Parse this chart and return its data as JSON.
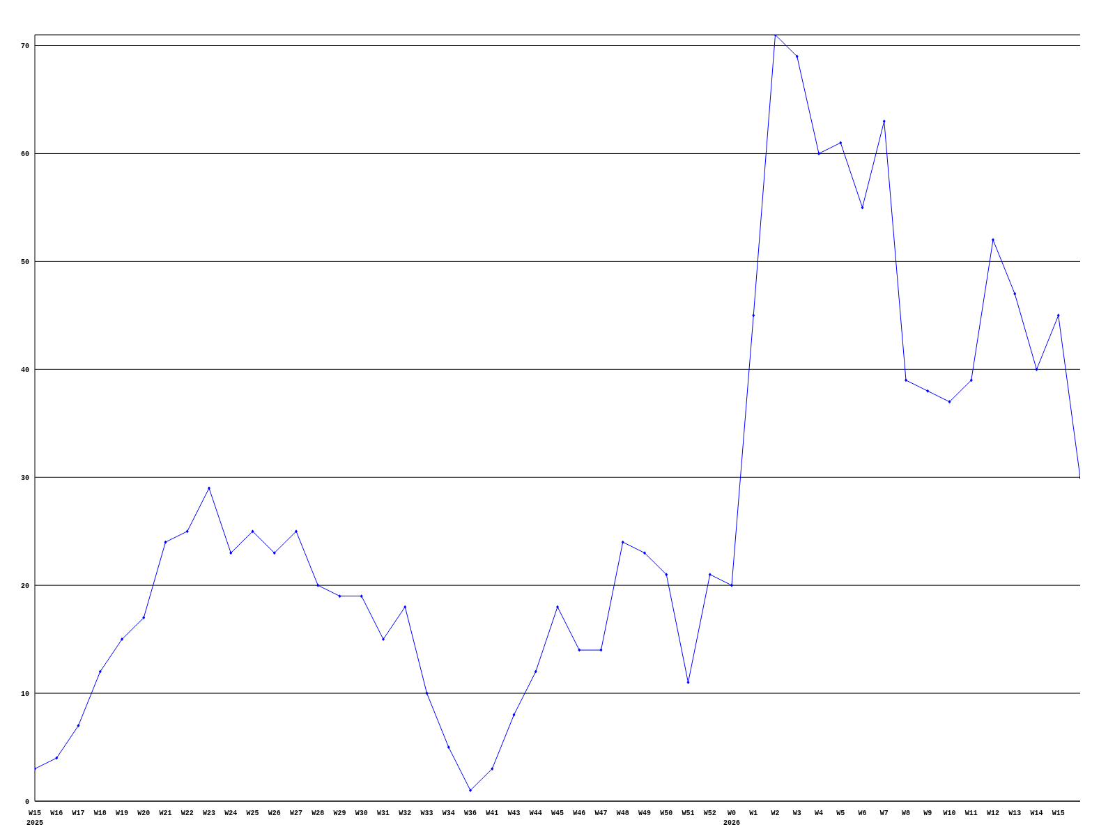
{
  "chart_data": {
    "type": "line",
    "categories": [
      "W15\n2025",
      "W16",
      "W17",
      "W18",
      "W19",
      "W20",
      "W21",
      "W22",
      "W23",
      "W24",
      "W25",
      "W26",
      "W27",
      "W28",
      "W29",
      "W30",
      "W31",
      "W32",
      "W33",
      "W34",
      "W36",
      "W41",
      "W43",
      "W44",
      "W45",
      "W46",
      "W47",
      "W48",
      "W49",
      "W50",
      "W51",
      "W52",
      "W0\n2026",
      "W1",
      "W2",
      "W3",
      "W4",
      "W5",
      "W6",
      "W7",
      "W8",
      "W9",
      "W10",
      "W11",
      "W12",
      "W13",
      "W14",
      "W15",
      null
    ],
    "series": [
      {
        "color": "#0000ff",
        "values": [
          3,
          4,
          7,
          12,
          15,
          17,
          24,
          25,
          29,
          23,
          25,
          23,
          25,
          20,
          19,
          19,
          15,
          18,
          10,
          5,
          1,
          3,
          8,
          12,
          18,
          14,
          14,
          24,
          23,
          21,
          11,
          21,
          20,
          45,
          71,
          69,
          60,
          61,
          55,
          63,
          39,
          38,
          37,
          39,
          52,
          47,
          40,
          45,
          30
        ]
      }
    ],
    "ylim": [
      0,
      71
    ],
    "yticks": [
      0,
      10,
      20,
      30,
      40,
      50,
      60,
      70
    ],
    "grid": "y",
    "marker": "diamond",
    "line_style": "solid",
    "legend": false
  }
}
